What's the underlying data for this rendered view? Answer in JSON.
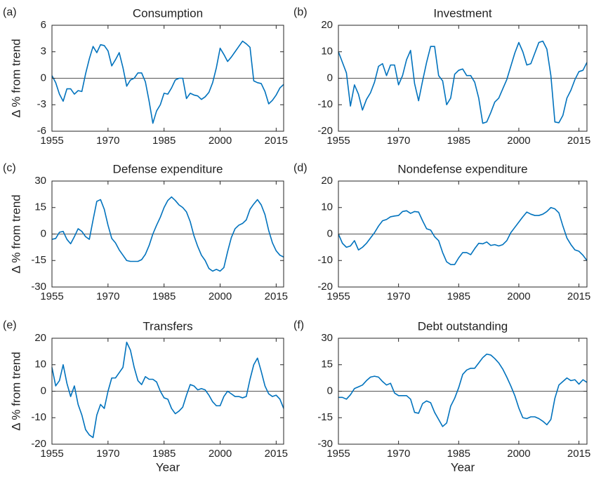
{
  "chart_data": [
    {
      "type": "line",
      "label": "(a)",
      "title": "Consumption",
      "ylabel": "Δ % from trend",
      "color": "#0072bd",
      "xlim": [
        1955,
        2017
      ],
      "xticks": [
        1955,
        1970,
        1985,
        2000,
        2015
      ],
      "ylim": [
        -6,
        6
      ],
      "yticks": [
        -6,
        -3,
        0,
        3,
        6
      ],
      "x": [
        1955,
        1956,
        1957,
        1958,
        1959,
        1960,
        1961,
        1962,
        1963,
        1964,
        1965,
        1966,
        1967,
        1968,
        1969,
        1970,
        1971,
        1972,
        1973,
        1974,
        1975,
        1976,
        1977,
        1978,
        1979,
        1980,
        1981,
        1982,
        1983,
        1984,
        1985,
        1986,
        1987,
        1988,
        1989,
        1990,
        1991,
        1992,
        1993,
        1994,
        1995,
        1996,
        1997,
        1998,
        1999,
        2000,
        2001,
        2002,
        2003,
        2004,
        2005,
        2006,
        2007,
        2008,
        2009,
        2010,
        2011,
        2012,
        2013,
        2014,
        2015,
        2016,
        2017
      ],
      "values": [
        0.3,
        -0.5,
        -1.8,
        -2.6,
        -1.2,
        -1.2,
        -1.8,
        -1.4,
        -1.5,
        0.5,
        2.2,
        3.6,
        2.9,
        3.8,
        3.7,
        3.1,
        1.4,
        2.1,
        2.9,
        1.2,
        -0.9,
        -0.2,
        0.0,
        0.6,
        0.6,
        -0.4,
        -2.6,
        -5.1,
        -3.7,
        -3.0,
        -1.7,
        -1.8,
        -1.1,
        -0.2,
        0.0,
        0.0,
        -2.3,
        -1.7,
        -1.9,
        -2.0,
        -2.4,
        -2.1,
        -1.6,
        -0.5,
        1.2,
        3.4,
        2.7,
        1.9,
        2.4,
        3.0,
        3.6,
        4.2,
        3.9,
        3.5,
        -0.3,
        -0.5,
        -0.6,
        -1.5,
        -2.9,
        -2.5,
        -1.9,
        -1.1,
        -0.7
      ]
    },
    {
      "type": "line",
      "label": "(b)",
      "title": "Investment",
      "color": "#0072bd",
      "xlim": [
        1955,
        2017
      ],
      "xticks": [
        1955,
        1970,
        1985,
        2000,
        2015
      ],
      "ylim": [
        -20,
        20
      ],
      "yticks": [
        -20,
        -10,
        0,
        10,
        20
      ],
      "x": [
        1955,
        1956,
        1957,
        1958,
        1959,
        1960,
        1961,
        1962,
        1963,
        1964,
        1965,
        1966,
        1967,
        1968,
        1969,
        1970,
        1971,
        1972,
        1973,
        1974,
        1975,
        1976,
        1977,
        1978,
        1979,
        1980,
        1981,
        1982,
        1983,
        1984,
        1985,
        1986,
        1987,
        1988,
        1989,
        1990,
        1991,
        1992,
        1993,
        1994,
        1995,
        1996,
        1997,
        1998,
        1999,
        2000,
        2001,
        2002,
        2003,
        2004,
        2005,
        2006,
        2007,
        2008,
        2009,
        2010,
        2011,
        2012,
        2013,
        2014,
        2015,
        2016,
        2017
      ],
      "values": [
        10,
        6,
        2,
        -10.5,
        -2.5,
        -6,
        -12,
        -8,
        -5.5,
        -1.5,
        4.5,
        5.5,
        1,
        5,
        5,
        -2.5,
        1,
        7,
        10.5,
        -2,
        -8.5,
        -1,
        6,
        12,
        12,
        1,
        -1,
        -10,
        -7.5,
        1.5,
        3,
        3.5,
        1,
        1,
        -1.5,
        -7.5,
        -17,
        -16.5,
        -13,
        -9,
        -7.5,
        -4,
        -0.5,
        4.5,
        9.5,
        13.5,
        10,
        5,
        5.5,
        9.5,
        13.5,
        14,
        11,
        1,
        -16.5,
        -16.8,
        -14,
        -7.5,
        -4.5,
        -0.5,
        2.5,
        3,
        6
      ]
    },
    {
      "type": "line",
      "label": "(c)",
      "title": "Defense expenditure",
      "ylabel": "Δ % from trend",
      "color": "#0072bd",
      "xlim": [
        1955,
        2017
      ],
      "xticks": [
        1955,
        1970,
        1985,
        2000,
        2015
      ],
      "ylim": [
        -30,
        30
      ],
      "yticks": [
        -30,
        -15,
        0,
        15,
        30
      ],
      "x": [
        1955,
        1956,
        1957,
        1958,
        1959,
        1960,
        1961,
        1962,
        1963,
        1964,
        1965,
        1966,
        1967,
        1968,
        1969,
        1970,
        1971,
        1972,
        1973,
        1974,
        1975,
        1976,
        1977,
        1978,
        1979,
        1980,
        1981,
        1982,
        1983,
        1984,
        1985,
        1986,
        1987,
        1988,
        1989,
        1990,
        1991,
        1992,
        1993,
        1994,
        1995,
        1996,
        1997,
        1998,
        1999,
        2000,
        2001,
        2002,
        2003,
        2004,
        2005,
        2006,
        2007,
        2008,
        2009,
        2010,
        2011,
        2012,
        2013,
        2014,
        2015,
        2016,
        2017
      ],
      "values": [
        -3,
        -2.5,
        1,
        1.5,
        -3,
        -5.5,
        -1.5,
        3,
        1.5,
        -1.5,
        -3,
        8,
        18.5,
        19.5,
        14,
        5,
        -2.5,
        -5,
        -9,
        -12,
        -15,
        -15.5,
        -15.5,
        -15.5,
        -14.5,
        -11.5,
        -6.5,
        0,
        5,
        9.5,
        15,
        19,
        21,
        19,
        16.5,
        15,
        12.5,
        7,
        -1,
        -7,
        -12,
        -15,
        -19.5,
        -21,
        -20,
        -21,
        -19,
        -10,
        -2,
        3,
        5,
        6,
        8,
        14,
        17,
        19.5,
        16.5,
        11,
        2,
        -5,
        -9.5,
        -12,
        -13
      ]
    },
    {
      "type": "line",
      "label": "(d)",
      "title": "Nondefense expenditure",
      "color": "#0072bd",
      "xlim": [
        1955,
        2017
      ],
      "xticks": [
        1955,
        1970,
        1985,
        2000,
        2015
      ],
      "ylim": [
        -20,
        20
      ],
      "yticks": [
        -20,
        -10,
        0,
        10,
        20
      ],
      "x": [
        1955,
        1956,
        1957,
        1958,
        1959,
        1960,
        1961,
        1962,
        1963,
        1964,
        1965,
        1966,
        1967,
        1968,
        1969,
        1970,
        1971,
        1972,
        1973,
        1974,
        1975,
        1976,
        1977,
        1978,
        1979,
        1980,
        1981,
        1982,
        1983,
        1984,
        1985,
        1986,
        1987,
        1988,
        1989,
        1990,
        1991,
        1992,
        1993,
        1994,
        1995,
        1996,
        1997,
        1998,
        1999,
        2000,
        2001,
        2002,
        2003,
        2004,
        2005,
        2006,
        2007,
        2008,
        2009,
        2010,
        2011,
        2012,
        2013,
        2014,
        2015,
        2016,
        2017
      ],
      "values": [
        0,
        -3.5,
        -5,
        -4.5,
        -2.5,
        -6,
        -5,
        -3.5,
        -1.5,
        0.5,
        3,
        5,
        5.5,
        6.5,
        6.8,
        7,
        8.5,
        8.8,
        7.8,
        8.5,
        8.3,
        5,
        2,
        1.5,
        -1,
        -2.5,
        -7,
        -10.5,
        -11.5,
        -11.5,
        -9,
        -7,
        -7,
        -7.8,
        -5.5,
        -3.5,
        -3.7,
        -3,
        -4.3,
        -4,
        -4.5,
        -4,
        -2.5,
        0.5,
        2.5,
        4.5,
        6.5,
        8.3,
        7.5,
        7,
        7,
        7.5,
        8.5,
        10,
        9.5,
        8,
        3,
        -1.5,
        -4,
        -6,
        -6.5,
        -8,
        -10
      ]
    },
    {
      "type": "line",
      "label": "(e)",
      "title": "Transfers",
      "ylabel": "Δ % from trend",
      "xlabel": "Year",
      "color": "#0072bd",
      "xlim": [
        1955,
        2017
      ],
      "xticks": [
        1955,
        1970,
        1985,
        2000,
        2015
      ],
      "ylim": [
        -20,
        20
      ],
      "yticks": [
        -20,
        -10,
        0,
        10,
        20
      ],
      "x": [
        1955,
        1956,
        1957,
        1958,
        1959,
        1960,
        1961,
        1962,
        1963,
        1964,
        1965,
        1966,
        1967,
        1968,
        1969,
        1970,
        1971,
        1972,
        1973,
        1974,
        1975,
        1976,
        1977,
        1978,
        1979,
        1980,
        1981,
        1982,
        1983,
        1984,
        1985,
        1986,
        1987,
        1988,
        1989,
        1990,
        1991,
        1992,
        1993,
        1994,
        1995,
        1996,
        1997,
        1998,
        1999,
        2000,
        2001,
        2002,
        2003,
        2004,
        2005,
        2006,
        2007,
        2008,
        2009,
        2010,
        2011,
        2012,
        2013,
        2014,
        2015,
        2016,
        2017
      ],
      "values": [
        9,
        2,
        4,
        10,
        3,
        -2,
        2,
        -5,
        -9,
        -14.5,
        -16.5,
        -17.5,
        -9,
        -5,
        -6.5,
        0,
        5,
        5,
        7,
        9,
        18.5,
        15.5,
        9,
        4,
        2.5,
        5.5,
        4.5,
        4.5,
        3.5,
        0,
        -2.5,
        -3,
        -6.5,
        -8.5,
        -7.5,
        -6,
        -1.5,
        2.5,
        2,
        0.5,
        1,
        0.5,
        -1.5,
        -4,
        -5.5,
        -5.5,
        -2,
        0,
        -1,
        -2,
        -2,
        -2.5,
        -2,
        4.5,
        10,
        12.5,
        7.5,
        2,
        -1,
        -2,
        -1.5,
        -3,
        -6.5
      ]
    },
    {
      "type": "line",
      "label": "(f)",
      "title": "Debt outstanding",
      "xlabel": "Year",
      "color": "#0072bd",
      "xlim": [
        1955,
        2017
      ],
      "xticks": [
        1955,
        1970,
        1985,
        2000,
        2015
      ],
      "ylim": [
        -30,
        30
      ],
      "yticks": [
        -30,
        -15,
        0,
        15,
        30
      ],
      "x": [
        1955,
        1956,
        1957,
        1958,
        1959,
        1960,
        1961,
        1962,
        1963,
        1964,
        1965,
        1966,
        1967,
        1968,
        1969,
        1970,
        1971,
        1972,
        1973,
        1974,
        1975,
        1976,
        1977,
        1978,
        1979,
        1980,
        1981,
        1982,
        1983,
        1984,
        1985,
        1986,
        1987,
        1988,
        1989,
        1990,
        1991,
        1992,
        1993,
        1994,
        1995,
        1996,
        1997,
        1998,
        1999,
        2000,
        2001,
        2002,
        2003,
        2004,
        2005,
        2006,
        2007,
        2008,
        2009,
        2010,
        2011,
        2012,
        2013,
        2014,
        2015,
        2016,
        2017
      ],
      "values": [
        -3.5,
        -3.5,
        -4.5,
        -2,
        1.5,
        2.5,
        3.5,
        6,
        8,
        8.5,
        8,
        5.5,
        3.5,
        4.5,
        -1,
        -2.5,
        -2.5,
        -2.5,
        -4.5,
        -12,
        -12.5,
        -7,
        -5.5,
        -6.5,
        -12,
        -16,
        -20,
        -18,
        -8.5,
        -4,
        2,
        9.5,
        12,
        13,
        13,
        16,
        19,
        21,
        20.5,
        18.5,
        16,
        12.5,
        8,
        3,
        -2.5,
        -9.5,
        -15,
        -15.5,
        -14.5,
        -14.5,
        -15.5,
        -17,
        -19,
        -16,
        -4,
        3.5,
        5.5,
        7.5,
        6,
        6.5,
        4,
        6.5,
        5
      ]
    }
  ]
}
